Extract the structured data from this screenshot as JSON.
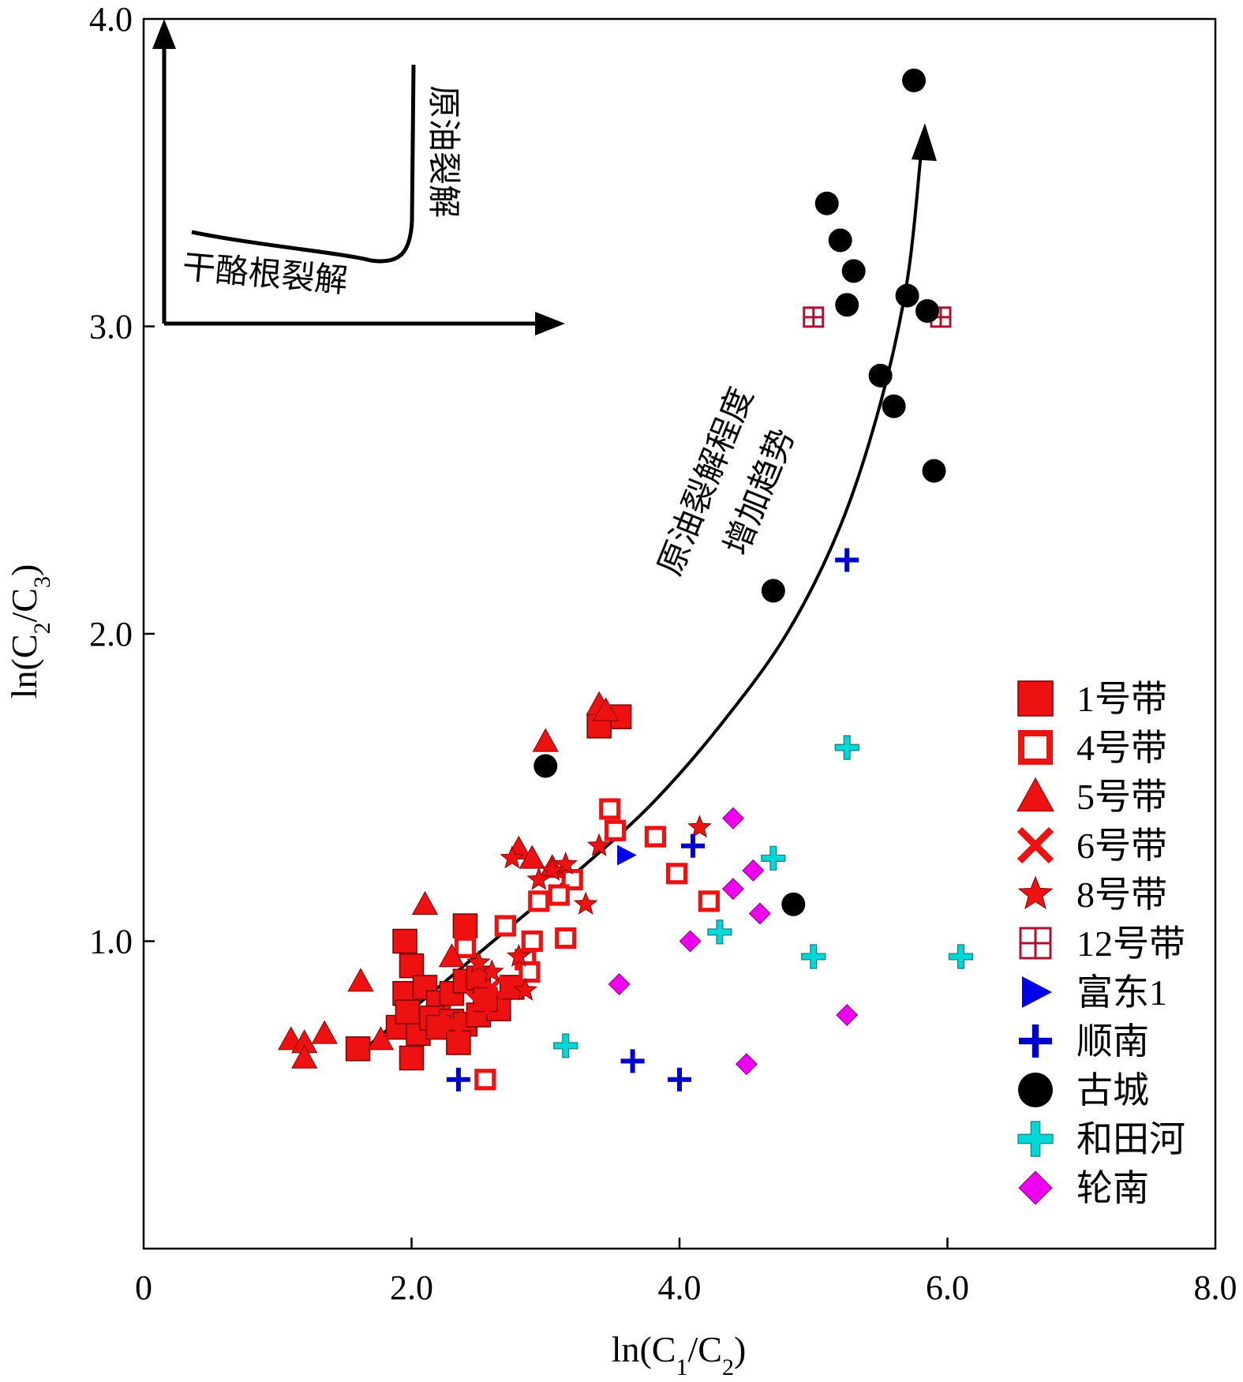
{
  "chart_data": {
    "type": "scatter",
    "xlabel": "ln(C1/C2)",
    "ylabel": "ln(C2/C3)",
    "xlim": [
      0,
      8
    ],
    "ylim": [
      0,
      4
    ],
    "x_ticks": [
      "0",
      "2.0",
      "4.0",
      "6.0",
      "8.0"
    ],
    "y_ticks": [
      "1.0",
      "2.0",
      "3.0",
      "4.0"
    ],
    "grid": false,
    "legend_position": "right",
    "annotations": {
      "inset_horizontal": "干酪根裂解",
      "inset_vertical": "原油裂解",
      "trend_line1": "原油裂解程度",
      "trend_line2": "增加趋势"
    },
    "trend_curve": [
      [
        1.65,
        0.65
      ],
      [
        2.2,
        0.85
      ],
      [
        2.8,
        1.07
      ],
      [
        3.3,
        1.25
      ],
      [
        3.8,
        1.45
      ],
      [
        4.3,
        1.7
      ],
      [
        4.8,
        2.0
      ],
      [
        5.2,
        2.35
      ],
      [
        5.5,
        2.75
      ],
      [
        5.7,
        3.15
      ],
      [
        5.8,
        3.55
      ],
      [
        5.82,
        3.62
      ]
    ],
    "series": [
      {
        "name": "1号带",
        "marker": "square-filled",
        "color": "#ee1111",
        "points": [
          [
            3.55,
            1.73
          ],
          [
            3.4,
            1.7
          ],
          [
            1.95,
            1.0
          ],
          [
            2.0,
            0.92
          ],
          [
            2.4,
            1.05
          ],
          [
            1.95,
            0.83
          ],
          [
            2.1,
            0.85
          ],
          [
            2.2,
            0.8
          ],
          [
            2.3,
            0.83
          ],
          [
            2.4,
            0.87
          ],
          [
            2.5,
            0.88
          ],
          [
            1.9,
            0.72
          ],
          [
            2.05,
            0.7
          ],
          [
            2.15,
            0.75
          ],
          [
            2.3,
            0.74
          ],
          [
            2.4,
            0.73
          ],
          [
            2.5,
            0.76
          ],
          [
            2.65,
            0.78
          ],
          [
            2.0,
            0.62
          ],
          [
            1.6,
            0.65
          ],
          [
            2.2,
            0.72
          ],
          [
            2.35,
            0.67
          ],
          [
            1.97,
            0.77
          ],
          [
            2.55,
            0.81
          ],
          [
            2.75,
            0.85
          ]
        ]
      },
      {
        "name": "4号带",
        "marker": "square-open",
        "color": "#ee1111",
        "points": [
          [
            3.48,
            1.43
          ],
          [
            3.52,
            1.36
          ],
          [
            3.82,
            1.34
          ],
          [
            3.2,
            1.2
          ],
          [
            3.1,
            1.15
          ],
          [
            3.98,
            1.22
          ],
          [
            4.22,
            1.13
          ],
          [
            2.95,
            1.13
          ],
          [
            2.7,
            1.05
          ],
          [
            2.4,
            0.98
          ],
          [
            2.9,
            1.0
          ],
          [
            3.15,
            1.01
          ],
          [
            2.85,
            0.94
          ],
          [
            2.88,
            0.9
          ],
          [
            2.55,
            0.55
          ]
        ]
      },
      {
        "name": "5号带",
        "marker": "triangle",
        "color": "#ee1111",
        "points": [
          [
            3.0,
            1.65
          ],
          [
            3.4,
            1.77
          ],
          [
            3.45,
            1.75
          ],
          [
            1.62,
            0.87
          ],
          [
            2.1,
            1.12
          ],
          [
            2.3,
            0.95
          ],
          [
            1.1,
            0.68
          ],
          [
            1.2,
            0.67
          ],
          [
            1.35,
            0.7
          ],
          [
            1.77,
            0.68
          ],
          [
            1.2,
            0.62
          ],
          [
            2.8,
            1.3
          ],
          [
            2.9,
            1.27
          ],
          [
            3.05,
            1.24
          ]
        ]
      },
      {
        "name": "6号带",
        "marker": "x-cross",
        "color": "#ee1111",
        "points": [
          [
            2.3,
            0.73
          ],
          [
            2.5,
            0.8
          ],
          [
            2.6,
            0.85
          ]
        ]
      },
      {
        "name": "8号带",
        "marker": "star",
        "color": "#ee1111",
        "points": [
          [
            4.15,
            1.37
          ],
          [
            3.15,
            1.25
          ],
          [
            3.05,
            1.23
          ],
          [
            3.3,
            1.12
          ],
          [
            2.85,
            0.84
          ],
          [
            2.75,
            1.27
          ],
          [
            2.6,
            0.9
          ],
          [
            2.5,
            0.93
          ],
          [
            2.8,
            0.95
          ],
          [
            2.95,
            1.2
          ],
          [
            3.4,
            1.31
          ]
        ]
      },
      {
        "name": "12号带",
        "marker": "square-cross",
        "color": "#ee1111",
        "points": [
          [
            5.0,
            3.03
          ],
          [
            5.95,
            3.03
          ]
        ]
      },
      {
        "name": "富东1",
        "marker": "triangle-right",
        "color": "#0000ee",
        "points": [
          [
            3.6,
            1.28
          ]
        ]
      },
      {
        "name": "顺南",
        "marker": "plus",
        "color": "#0000cc",
        "points": [
          [
            5.25,
            2.24
          ],
          [
            4.1,
            1.31
          ],
          [
            3.65,
            0.61
          ],
          [
            4.0,
            0.55
          ],
          [
            2.35,
            0.55
          ]
        ]
      },
      {
        "name": "古城",
        "marker": "circle",
        "color": "#000000",
        "points": [
          [
            5.75,
            3.8
          ],
          [
            5.1,
            3.4
          ],
          [
            5.2,
            3.28
          ],
          [
            5.3,
            3.18
          ],
          [
            5.25,
            3.07
          ],
          [
            5.7,
            3.1
          ],
          [
            5.85,
            3.05
          ],
          [
            5.5,
            2.84
          ],
          [
            5.6,
            2.74
          ],
          [
            5.9,
            2.53
          ],
          [
            4.7,
            2.14
          ],
          [
            3.0,
            1.57
          ],
          [
            4.85,
            1.12
          ]
        ]
      },
      {
        "name": "和田河",
        "marker": "plus-outline",
        "color": "#00d8d8",
        "points": [
          [
            5.25,
            1.63
          ],
          [
            4.7,
            1.27
          ],
          [
            4.3,
            1.03
          ],
          [
            5.0,
            0.95
          ],
          [
            6.1,
            0.95
          ],
          [
            3.15,
            0.66
          ]
        ]
      },
      {
        "name": "轮南",
        "marker": "diamond",
        "color": "#ee00ee",
        "points": [
          [
            4.4,
            1.4
          ],
          [
            4.55,
            1.23
          ],
          [
            4.4,
            1.17
          ],
          [
            4.6,
            1.09
          ],
          [
            4.08,
            1.0
          ],
          [
            3.55,
            0.86
          ],
          [
            5.25,
            0.76
          ],
          [
            4.5,
            0.6
          ]
        ]
      }
    ]
  }
}
